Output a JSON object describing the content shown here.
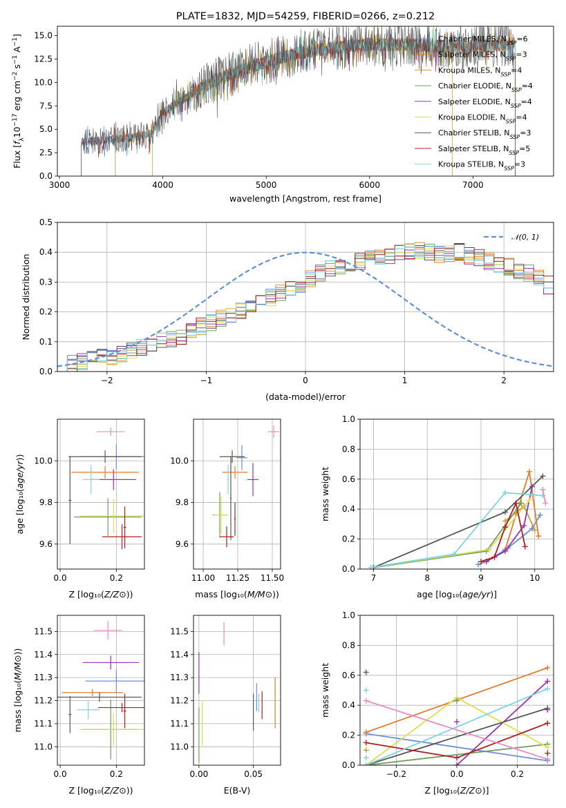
{
  "chart_data": [
    {
      "id": "spectrum",
      "type": "line",
      "title": "PLATE=1832, MJD=54259, FIBERID=0266, z=0.212",
      "xlabel": "wavelength [Angstrom, rest frame]",
      "ylabel": "Flux [f_λ10^-17 erg cm^-2 s^-1 A^-1]",
      "xlim": [
        2980,
        7780
      ],
      "ylim": [
        0,
        16
      ],
      "xticks": [
        "3000",
        "4000",
        "5000",
        "6000",
        "7000"
      ],
      "xtick_values": [
        3000,
        4000,
        5000,
        6000,
        7000
      ],
      "yticks": [
        "0.0",
        "2.5",
        "5.0",
        "7.5",
        "10.0",
        "12.5",
        "15.0"
      ],
      "ytick_values": [
        0,
        2.5,
        5,
        7.5,
        10,
        12.5,
        15
      ],
      "legend_position": "top-right",
      "series": [
        {
          "name": "Chabrier MILES, N_SSP=6",
          "ssp": "6",
          "color": "#6a8fd8"
        },
        {
          "name": "Salpeter MILES, N_SSP=3",
          "ssp": "3",
          "color": "#e07b28"
        },
        {
          "name": "Kroupa MILES, N_SSP=4",
          "ssp": "4",
          "color": "#c49a3c"
        },
        {
          "name": "Chabrier ELODIE, N_SSP=4",
          "ssp": "4",
          "color": "#6f9d60"
        },
        {
          "name": "Salpeter ELODIE, N_SSP=4",
          "ssp": "4",
          "color": "#9b30b0"
        },
        {
          "name": "Kroupa ELODIE, N_SSP=4",
          "ssp": "4",
          "color": "#d8e050"
        },
        {
          "name": "Chabrier STELIB, N_SSP=3",
          "ssp": "3",
          "color": "#555555"
        },
        {
          "name": "Salpeter STELIB, N_SSP=5",
          "ssp": "5",
          "color": "#b01e1e"
        },
        {
          "name": "Kroupa STELIB, N_SSP=3",
          "ssp": "3",
          "color": "#7dd3e0"
        }
      ],
      "continuum": [
        [
          3210,
          3.6
        ],
        [
          3400,
          3.8
        ],
        [
          3700,
          4.1
        ],
        [
          3900,
          4.6
        ],
        [
          4000,
          6.8
        ],
        [
          4200,
          8.2
        ],
        [
          4500,
          10.2
        ],
        [
          4800,
          11.5
        ],
        [
          5000,
          12.2
        ],
        [
          5300,
          13.1
        ],
        [
          5600,
          13.6
        ],
        [
          6000,
          14.1
        ],
        [
          6400,
          14.0
        ],
        [
          6800,
          13.8
        ],
        [
          7200,
          14.0
        ],
        [
          7420,
          14.2
        ]
      ],
      "model_cutoffs": {
        "Salpeter MILES": [
          3540,
          7410
        ],
        "Kroupa MILES": [
          3540,
          7410
        ],
        "ELODIE": [
          3900,
          6800
        ],
        "STELIB": [
          3210,
          7410
        ]
      }
    },
    {
      "id": "residuals",
      "type": "histogram",
      "xlabel": "(data-model)/error",
      "ylabel": "Normed distribution",
      "xlim": [
        -2.5,
        2.5
      ],
      "ylim": [
        0,
        0.5
      ],
      "xticks": [
        "−2",
        "−1",
        "0",
        "1",
        "2"
      ],
      "xtick_values": [
        -2,
        -1,
        0,
        1,
        2
      ],
      "yticks": [
        "0.0",
        "0.1",
        "0.2",
        "0.3",
        "0.4",
        "0.5"
      ],
      "ytick_values": [
        0,
        0.1,
        0.2,
        0.3,
        0.4,
        0.5
      ],
      "bin_width": 0.1,
      "grid": true,
      "legend_position": "top-right",
      "reference_label": "𝒩(0, 1)",
      "reference_color": "#5f8fd6",
      "heights_base": [
        0.02,
        0.025,
        0.03,
        0.04,
        0.045,
        0.05,
        0.055,
        0.07,
        0.08,
        0.09,
        0.1,
        0.11,
        0.12,
        0.135,
        0.15,
        0.165,
        0.18,
        0.19,
        0.2,
        0.215,
        0.23,
        0.25,
        0.265,
        0.28,
        0.295,
        0.31,
        0.33,
        0.345,
        0.35,
        0.36,
        0.37,
        0.38,
        0.385,
        0.39,
        0.395,
        0.4,
        0.405,
        0.4,
        0.395,
        0.395,
        0.4,
        0.39,
        0.38,
        0.37,
        0.36,
        0.35,
        0.34,
        0.33,
        0.31,
        0.29,
        0.27,
        0.26,
        0.24,
        0.22,
        0.2,
        0.185,
        0.17,
        0.155,
        0.14,
        0.125,
        0.11,
        0.1,
        0.09,
        0.08,
        0.07,
        0.06,
        0.05,
        0.045,
        0.04,
        0.035,
        0.03,
        0.03,
        0.025,
        0.025,
        0.02,
        0.02,
        0.02,
        0.02,
        0.02,
        0.02
      ]
    },
    {
      "id": "age-vs-Z",
      "type": "errorbar",
      "xlabel": "Z [log10(Z/Z⊙)]",
      "ylabel": "age [log10(age/yr)]",
      "xlim": [
        -0.01,
        0.3
      ],
      "ylim": [
        9.48,
        10.2
      ],
      "xticks": [
        "0.0",
        "0.2"
      ],
      "xtick_values": [
        0,
        0.2
      ],
      "yticks": [
        "9.6",
        "9.8",
        "10.0"
      ],
      "ytick_values": [
        9.6,
        9.8,
        10.0
      ],
      "points": [
        {
          "x": 0.2,
          "y": 10.02,
          "xerr": 0.13,
          "yerr": 0.06,
          "color": "#6a8fd8"
        },
        {
          "x": 0.16,
          "y": 9.945,
          "xerr": 0.12,
          "yerr": 0.03,
          "color": "#e07b28"
        },
        {
          "x": 0.19,
          "y": 9.91,
          "xerr": 0.08,
          "yerr": 0.05,
          "color": "#9b30b0"
        },
        {
          "x": 0.17,
          "y": 9.73,
          "xerr": 0.12,
          "yerr": 0.09,
          "color": "#6f9d60"
        },
        {
          "x": 0.19,
          "y": 9.735,
          "xerr": 0.12,
          "yerr": 0.08,
          "color": "#d8e050"
        },
        {
          "x": 0.16,
          "y": 10.02,
          "xerr": 0.13,
          "yerr": 0.03,
          "color": "#555555"
        },
        {
          "x": 0.035,
          "y": 9.81,
          "xerr": 0.005,
          "yerr": 0.21,
          "color": "#555555"
        },
        {
          "x": 0.22,
          "y": 9.635,
          "xerr": 0.07,
          "yerr": 0.06,
          "color": "#b01e1e"
        },
        {
          "x": 0.23,
          "y": 9.68,
          "xerr": 0.005,
          "yerr": 0.1,
          "color": "#b01e1e"
        },
        {
          "x": 0.11,
          "y": 9.91,
          "xerr": 0.03,
          "yerr": 0.07,
          "color": "#7dd3e0"
        },
        {
          "x": 0.18,
          "y": 10.14,
          "xerr": 0.05,
          "yerr": 0.02,
          "color": "#e88bc0"
        }
      ]
    },
    {
      "id": "age-vs-mass",
      "type": "errorbar",
      "xlabel": "mass [log10(M/M⊙)]",
      "ylabel": "",
      "xlim": [
        10.93,
        11.56
      ],
      "ylim": [
        9.48,
        10.2
      ],
      "xticks": [
        "11.00",
        "11.25",
        "11.50"
      ],
      "xtick_values": [
        11.0,
        11.25,
        11.5
      ],
      "yticks": [
        "9.6",
        "9.8",
        "10.0"
      ],
      "ytick_values": [
        9.6,
        9.8,
        10.0
      ],
      "points": [
        {
          "x": 11.28,
          "y": 10.015,
          "xerr": 0.04,
          "yerr": 0.06,
          "color": "#6a8fd8"
        },
        {
          "x": 11.23,
          "y": 9.945,
          "xerr": 0.09,
          "yerr": 0.03,
          "color": "#e07b28"
        },
        {
          "x": 11.36,
          "y": 9.91,
          "xerr": 0.04,
          "yerr": 0.08,
          "color": "#9b30b0"
        },
        {
          "x": 11.12,
          "y": 9.74,
          "xerr": 0.05,
          "yerr": 0.11,
          "color": "#6f9d60"
        },
        {
          "x": 11.13,
          "y": 9.74,
          "xerr": 0.05,
          "yerr": 0.09,
          "color": "#d8e050"
        },
        {
          "x": 11.21,
          "y": 10.02,
          "xerr": 0.09,
          "yerr": 0.03,
          "color": "#555555"
        },
        {
          "x": 11.2,
          "y": 9.82,
          "xerr": 0.005,
          "yerr": 0.2,
          "color": "#555555"
        },
        {
          "x": 11.17,
          "y": 9.635,
          "xerr": 0.05,
          "yerr": 0.05,
          "color": "#b01e1e"
        },
        {
          "x": 11.23,
          "y": 9.72,
          "xerr": 0.005,
          "yerr": 0.08,
          "color": "#b01e1e"
        },
        {
          "x": 11.18,
          "y": 9.91,
          "xerr": 0.005,
          "yerr": 0.07,
          "color": "#7dd3e0"
        },
        {
          "x": 11.51,
          "y": 10.14,
          "xerr": 0.04,
          "yerr": 0.03,
          "color": "#e88bc0"
        }
      ]
    },
    {
      "id": "massweight-vs-age",
      "type": "line",
      "xlabel": "age [log10(age/yr)]",
      "ylabel": "mass weight",
      "xlim": [
        6.75,
        10.35
      ],
      "ylim": [
        0,
        1
      ],
      "xticks": [
        "7",
        "8",
        "9",
        "10"
      ],
      "xtick_values": [
        7,
        8,
        9,
        10
      ],
      "yticks": [
        "0.0",
        "0.2",
        "0.4",
        "0.6",
        "0.8",
        "1.0"
      ],
      "ytick_values": [
        0,
        0.2,
        0.4,
        0.6,
        0.8,
        1.0
      ],
      "grid": true,
      "series": [
        {
          "color": "#6a8fd8",
          "x": [
            8.95,
            9.1,
            9.5,
            9.95,
            10.1
          ],
          "y": [
            0.03,
            0.05,
            0.14,
            0.27,
            0.36
          ]
        },
        {
          "color": "#e07b28",
          "x": [
            9.45,
            9.9,
            10.07
          ],
          "y": [
            0.13,
            0.65,
            0.22
          ]
        },
        {
          "color": "#c49a3c",
          "x": [
            9.45,
            9.8,
            10.0
          ],
          "y": [
            0.32,
            0.42,
            0.26
          ]
        },
        {
          "color": "#6f9d60",
          "x": [
            7.0,
            9.1,
            9.75
          ],
          "y": [
            0.01,
            0.12,
            0.44
          ]
        },
        {
          "color": "#9b30b0",
          "x": [
            9.1,
            9.45,
            9.8,
            9.95
          ],
          "y": [
            0.05,
            0.12,
            0.29,
            0.55
          ]
        },
        {
          "color": "#d8e050",
          "x": [
            6.95,
            9.15,
            9.9
          ],
          "y": [
            0.01,
            0.13,
            0.46
          ]
        },
        {
          "color": "#555555",
          "x": [
            7.0,
            9.45,
            10.15
          ],
          "y": [
            0.01,
            0.38,
            0.62
          ]
        },
        {
          "color": "#b01e1e",
          "x": [
            9.0,
            9.25,
            9.45,
            9.65,
            9.82
          ],
          "y": [
            0.05,
            0.08,
            0.28,
            0.44,
            0.15
          ]
        },
        {
          "color": "#7dd3e0",
          "x": [
            6.95,
            8.5,
            9.45,
            10.15
          ],
          "y": [
            0.01,
            0.1,
            0.51,
            0.49
          ]
        },
        {
          "color": "#e88bc0",
          "x": [
            10.15,
            10.2
          ],
          "y": [
            0.53,
            0.44
          ]
        }
      ]
    },
    {
      "id": "mass-vs-Z",
      "type": "errorbar",
      "xlabel": "Z [log10(Z/Z⊙)]",
      "ylabel": "mass [log10(M/M⊙)]",
      "xlim": [
        -0.01,
        0.3
      ],
      "ylim": [
        10.92,
        11.57
      ],
      "xticks": [
        "0.0",
        "0.2"
      ],
      "xtick_values": [
        0,
        0.2
      ],
      "yticks": [
        "11.0",
        "11.1",
        "11.2",
        "11.3",
        "11.4",
        "11.5"
      ],
      "ytick_values": [
        11.0,
        11.1,
        11.2,
        11.3,
        11.4,
        11.5
      ],
      "points": [
        {
          "x": 0.2,
          "y": 11.285,
          "xerr": 0.11,
          "yerr": 0.05,
          "color": "#6a8fd8"
        },
        {
          "x": 0.115,
          "y": 11.235,
          "xerr": 0.11,
          "yerr": 0.015,
          "color": "#e07b28"
        },
        {
          "x": 0.18,
          "y": 11.365,
          "xerr": 0.1,
          "yerr": 0.03,
          "color": "#9b30b0"
        },
        {
          "x": 0.18,
          "y": 11.075,
          "xerr": 0.1,
          "yerr": 0.13,
          "color": "#6f9d60"
        },
        {
          "x": 0.19,
          "y": 11.075,
          "xerr": 0.12,
          "yerr": 0.07,
          "color": "#d8e050"
        },
        {
          "x": 0.14,
          "y": 11.215,
          "xerr": 0.15,
          "yerr": 0.02,
          "color": "#555555"
        },
        {
          "x": 0.035,
          "y": 11.14,
          "xerr": 0.005,
          "yerr": 0.08,
          "color": "#555555"
        },
        {
          "x": 0.22,
          "y": 11.17,
          "xerr": 0.085,
          "yerr": 0.02,
          "color": "#b01e1e"
        },
        {
          "x": 0.23,
          "y": 11.155,
          "xerr": 0.005,
          "yerr": 0.075,
          "color": "#b01e1e"
        },
        {
          "x": 0.1,
          "y": 11.16,
          "xerr": 0.04,
          "yerr": 0.04,
          "color": "#7dd3e0"
        },
        {
          "x": 0.17,
          "y": 11.505,
          "xerr": 0.05,
          "yerr": 0.04,
          "color": "#e88bc0"
        }
      ]
    },
    {
      "id": "mass-vs-ebv",
      "type": "errorbar",
      "xlabel": "E(B-V)",
      "ylabel": "",
      "xlim": [
        -0.005,
        0.075
      ],
      "ylim": [
        10.92,
        11.57
      ],
      "xticks": [
        "0.00",
        "0.05"
      ],
      "xtick_values": [
        0,
        0.05
      ],
      "yticks": [
        "11.0",
        "11.1",
        "11.2",
        "11.3",
        "11.4",
        "11.5"
      ],
      "ytick_values": [
        11.0,
        11.1,
        11.2,
        11.3,
        11.4,
        11.5
      ],
      "points": [
        {
          "x": 0.053,
          "y": 11.215,
          "xerr": 0,
          "yerr": 0.06,
          "color": "#6a8fd8"
        },
        {
          "x": 0.07,
          "y": 11.19,
          "xerr": 0,
          "yerr": 0.11,
          "color": "#e07b28"
        },
        {
          "x": 0.0,
          "y": 11.32,
          "xerr": 0,
          "yerr": 0.09,
          "color": "#9b30b0"
        },
        {
          "x": 0.003,
          "y": 11.1,
          "xerr": 0,
          "yerr": 0.1,
          "color": "#d8e050"
        },
        {
          "x": 0.0,
          "y": 11.05,
          "xerr": 0,
          "yerr": 0.12,
          "color": "#6f9d60"
        },
        {
          "x": 0.05,
          "y": 11.15,
          "xerr": 0,
          "yerr": 0.08,
          "color": "#555555"
        },
        {
          "x": 0.058,
          "y": 11.18,
          "xerr": 0,
          "yerr": 0.06,
          "color": "#b01e1e"
        },
        {
          "x": 0.055,
          "y": 11.19,
          "xerr": 0,
          "yerr": 0.04,
          "color": "#7dd3e0"
        },
        {
          "x": 0.023,
          "y": 11.49,
          "xerr": 0,
          "yerr": 0.05,
          "color": "#e88bc0"
        }
      ]
    },
    {
      "id": "massweight-vs-Z",
      "type": "line",
      "xlabel": "Z [log10(Z/Z⊙)]",
      "ylabel": "mass weight",
      "xlim": [
        -0.32,
        0.32
      ],
      "ylim": [
        0,
        1
      ],
      "xticks": [
        "−0.2",
        "0.0",
        "0.2"
      ],
      "xtick_values": [
        -0.2,
        0.0,
        0.2
      ],
      "yticks": [
        "0.0",
        "0.2",
        "0.4",
        "0.6",
        "0.8",
        "1.0"
      ],
      "ytick_values": [
        0,
        0.2,
        0.4,
        0.6,
        0.8,
        1.0
      ],
      "grid": true,
      "series": [
        {
          "color": "#6a8fd8",
          "x": [
            -0.3,
            0.3
          ],
          "y": [
            0.21,
            0.03
          ]
        },
        {
          "color": "#e07b28",
          "x": [
            -0.3,
            0.3
          ],
          "y": [
            0.22,
            0.65
          ]
        },
        {
          "color": "#9b30b0",
          "x": [
            0.0,
            0.3
          ],
          "y": [
            0.0,
            0.56
          ]
        },
        {
          "color": "#6f9d60",
          "x": [
            -0.3,
            0.3
          ],
          "y": [
            0.0,
            0.14
          ]
        },
        {
          "color": "#d8e050",
          "x": [
            -0.3,
            0.0,
            0.3
          ],
          "y": [
            0.0,
            0.45,
            0.12
          ]
        },
        {
          "color": "#555555",
          "x": [
            -0.3,
            0.3
          ],
          "y": [
            0.0,
            0.38
          ]
        },
        {
          "color": "#b01e1e",
          "x": [
            -0.3,
            0.0,
            0.3
          ],
          "y": [
            0.15,
            0.05,
            0.28
          ]
        },
        {
          "color": "#7dd3e0",
          "x": [
            -0.3,
            0.3
          ],
          "y": [
            0.0,
            0.51
          ]
        },
        {
          "color": "#e88bc0",
          "x": [
            -0.3,
            0.3
          ],
          "y": [
            0.43,
            0.04
          ]
        }
      ],
      "markers": [
        {
          "x": -0.3,
          "y": 0.62,
          "color": "#555555"
        },
        {
          "x": -0.3,
          "y": 0.5,
          "color": "#7dd3e0"
        },
        {
          "x": -0.3,
          "y": 0.1,
          "color": "#c49a3c"
        },
        {
          "x": -0.3,
          "y": 0.05,
          "color": "#7dd3e0"
        },
        {
          "x": 0.0,
          "y": 0.29,
          "color": "#9b30b0"
        },
        {
          "x": 0.0,
          "y": 0.43,
          "color": "#6f9d60"
        },
        {
          "x": 0.3,
          "y": 0.37,
          "color": "#9b30b0"
        },
        {
          "x": 0.3,
          "y": 0.08,
          "color": "#b01e1e"
        }
      ]
    }
  ]
}
